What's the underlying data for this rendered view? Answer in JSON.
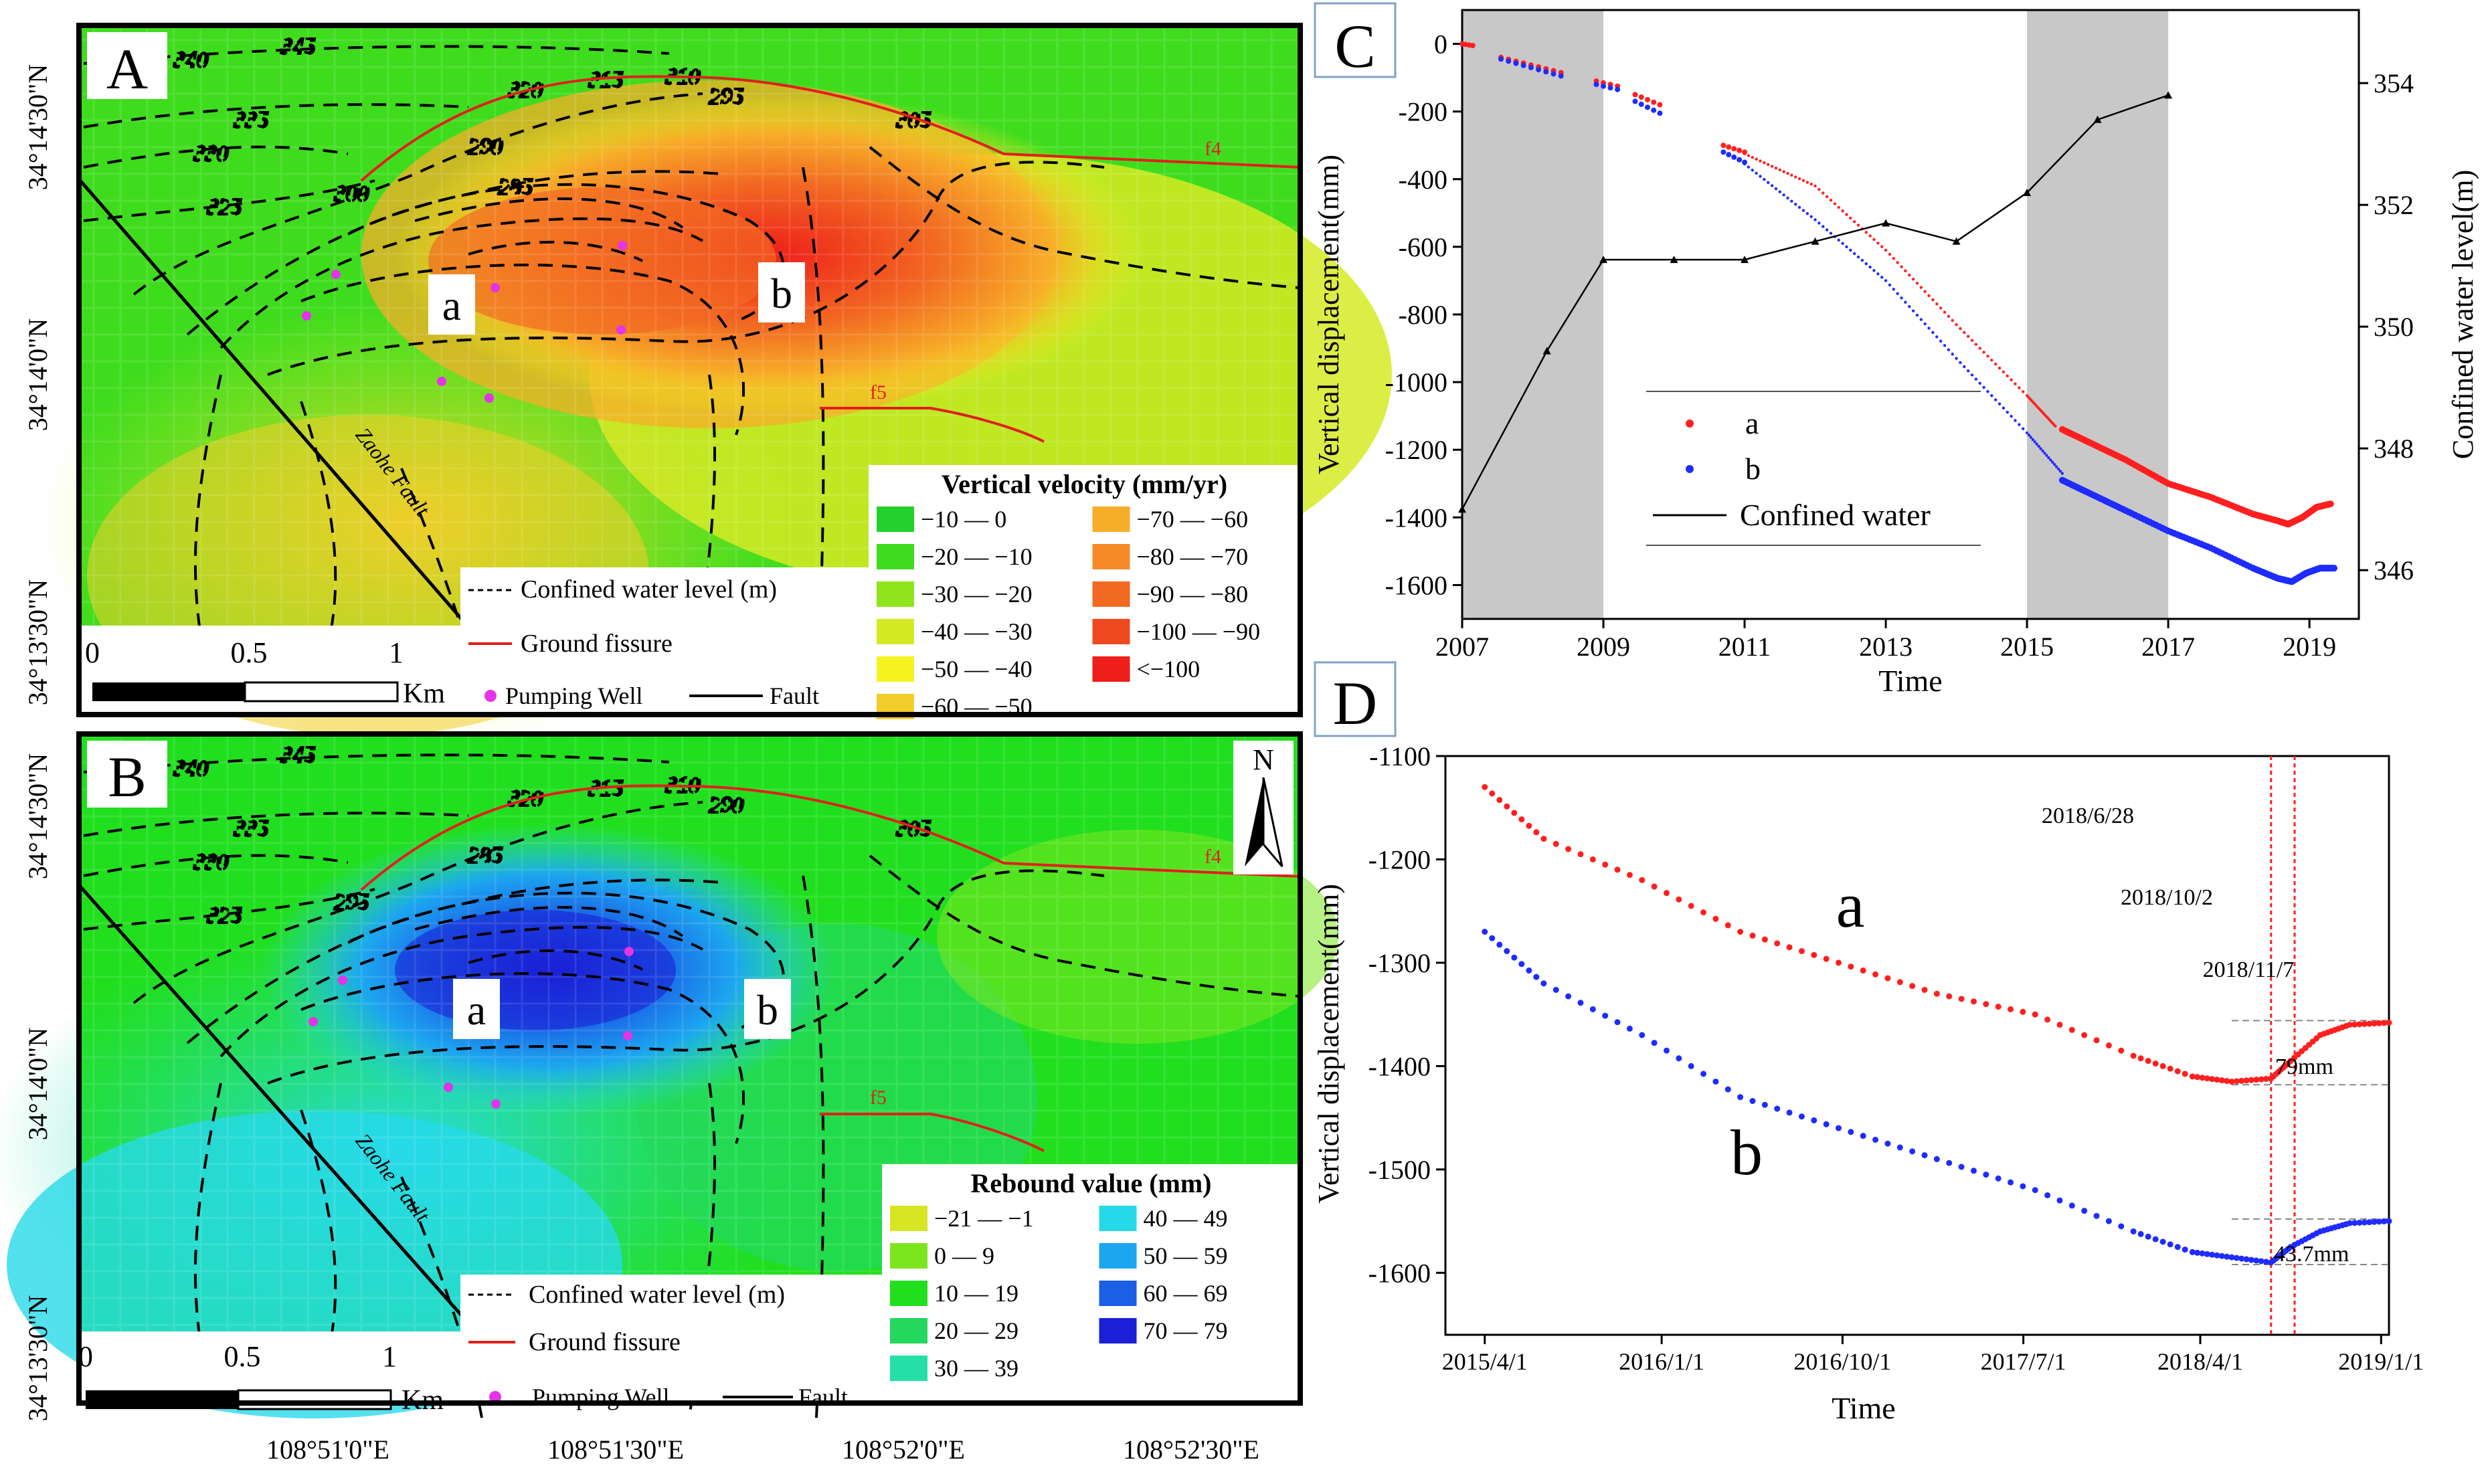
{
  "colors": {
    "red": "#ff1f1f",
    "blue": "#1f2bff",
    "black": "#000000",
    "fissure": "#e0201e",
    "gray_band": "#c8c8c8",
    "well": "#e533e8"
  },
  "chart_data": [
    {
      "id": "A",
      "type": "heatmap",
      "panel_label": "A",
      "y_ticks": [
        "34°14'30\"N",
        "34°14'0\"N",
        "34°13'30\"N"
      ],
      "scale_ticks": [
        "0",
        "0.5",
        "1"
      ],
      "scale_unit": "Km",
      "contours": [
        "345",
        "340",
        "335",
        "330",
        "325",
        "320",
        "315",
        "310",
        "305",
        "300",
        "295",
        "290",
        "285"
      ],
      "point_labels": [
        "a",
        "b"
      ],
      "fissure_labels": [
        "f4",
        "f5"
      ],
      "fault_label": "Zaohe Fault",
      "legend_overlay": [
        "Confined water level (m)",
        "Ground fissure",
        "Pumping Well",
        "Fault"
      ],
      "legend_title": "Vertical velocity (mm/yr)",
      "legend": [
        {
          "label": "−10 — 0",
          "color": "#22d12c"
        },
        {
          "label": "−20 — −10",
          "color": "#3fdc1e"
        },
        {
          "label": "−30 — −20",
          "color": "#8fe51d"
        },
        {
          "label": "−40 — −30",
          "color": "#d6ea24"
        },
        {
          "label": "−50 — −40",
          "color": "#f5f21f"
        },
        {
          "label": "−60 — −50",
          "color": "#f3cd2a"
        },
        {
          "label": "−70 — −60",
          "color": "#f7ad28"
        },
        {
          "label": "−80 — −70",
          "color": "#f58a26"
        },
        {
          "label": "−90 — −80",
          "color": "#f26a22"
        },
        {
          "label": "−100 — −90",
          "color": "#ef4a1f"
        },
        {
          "label": "<−100",
          "color": "#ee1f1a"
        }
      ]
    },
    {
      "id": "B",
      "type": "heatmap",
      "panel_label": "B",
      "north": "N",
      "x_ticks": [
        "108°51'0\"E",
        "108°51'30\"E",
        "108°52'0\"E",
        "108°52'30\"E"
      ],
      "y_ticks": [
        "34°14'30\"N",
        "34°14'0\"N",
        "34°13'30\"N"
      ],
      "scale_ticks": [
        "0",
        "0.5",
        "1"
      ],
      "scale_unit": "Km",
      "contours": [
        "345",
        "340",
        "335",
        "330",
        "325",
        "320",
        "315",
        "310",
        "305",
        "295",
        "290",
        "285"
      ],
      "point_labels": [
        "a",
        "b"
      ],
      "fissure_labels": [
        "f4",
        "f5"
      ],
      "fault_label": "Zaohe Fault",
      "legend_overlay": [
        "Confined water level (m)",
        "Ground fissure",
        "Pumping Well",
        "Fault"
      ],
      "legend_title": "Rebound value (mm)",
      "legend": [
        {
          "label": "−21 — −1",
          "color": "#d7e622"
        },
        {
          "label": "0 — 9",
          "color": "#7de51d"
        },
        {
          "label": "10 — 19",
          "color": "#21df1f"
        },
        {
          "label": "20 — 29",
          "color": "#23d85c"
        },
        {
          "label": "30 — 39",
          "color": "#25dfa9"
        },
        {
          "label": "40 — 49",
          "color": "#27d9e8"
        },
        {
          "label": "50 — 59",
          "color": "#1ca6ef"
        },
        {
          "label": "60 — 69",
          "color": "#1a5fe6"
        },
        {
          "label": "70 — 79",
          "color": "#1b1fd6"
        }
      ]
    },
    {
      "id": "C",
      "type": "scatter",
      "panel_label": "C",
      "xlabel": "Time",
      "ylabel": "Vertical displacement(mm)",
      "y2label": "Confined water level(m)",
      "xlim": [
        2007,
        2019.7
      ],
      "ylim": [
        -1700,
        100
      ],
      "y2lim": [
        345.2,
        355.2
      ],
      "x_ticks": [
        2007,
        2009,
        2011,
        2013,
        2015,
        2017,
        2019
      ],
      "y_ticks": [
        0,
        -200,
        -400,
        -600,
        -800,
        -1000,
        -1200,
        -1400,
        -1600
      ],
      "y2_ticks": [
        346,
        348,
        350,
        352,
        354
      ],
      "shaded_ranges": [
        [
          2007,
          2009
        ],
        [
          2015,
          2017
        ]
      ],
      "legend": [
        "a",
        "b",
        "Confined water"
      ],
      "series": [
        {
          "name": "a",
          "color": "#ff1f1f",
          "clusters": [
            [
              2007.0,
              2007.15,
              0,
              -5,
              4
            ],
            [
              2007.55,
              2008.4,
              -40,
              -85,
              9
            ],
            [
              2008.9,
              2009.2,
              -110,
              -125,
              4
            ],
            [
              2009.45,
              2009.8,
              -150,
              -180,
              5
            ],
            [
              2010.7,
              2011.0,
              -300,
              -320,
              5
            ]
          ],
          "trend": [
            [
              2011.0,
              -325
            ],
            [
              2012,
              -420
            ],
            [
              2013,
              -610
            ],
            [
              2014,
              -830
            ],
            [
              2015,
              -1040
            ],
            [
              2015.4,
              -1130
            ]
          ],
          "dense": [
            [
              2015.5,
              -1140
            ],
            [
              2015.9,
              -1180
            ],
            [
              2016.4,
              -1230
            ],
            [
              2017.0,
              -1300
            ],
            [
              2017.6,
              -1340
            ],
            [
              2018.2,
              -1390
            ],
            [
              2018.55,
              -1410
            ],
            [
              2018.7,
              -1420
            ],
            [
              2018.9,
              -1400
            ],
            [
              2019.1,
              -1370
            ],
            [
              2019.3,
              -1360
            ]
          ]
        },
        {
          "name": "b",
          "color": "#1f2bff",
          "clusters": [
            [
              2007.55,
              2008.4,
              -45,
              -95,
              9
            ],
            [
              2008.9,
              2009.2,
              -120,
              -135,
              4
            ],
            [
              2009.45,
              2009.8,
              -170,
              -205,
              5
            ],
            [
              2010.7,
              2011.0,
              -320,
              -350,
              5
            ]
          ],
          "trend": [
            [
              2011.0,
              -355
            ],
            [
              2012,
              -520
            ],
            [
              2013,
              -700
            ],
            [
              2014,
              -930
            ],
            [
              2015,
              -1150
            ],
            [
              2015.5,
              -1270
            ]
          ],
          "dense": [
            [
              2015.5,
              -1290
            ],
            [
              2015.9,
              -1330
            ],
            [
              2016.4,
              -1380
            ],
            [
              2017.0,
              -1440
            ],
            [
              2017.6,
              -1490
            ],
            [
              2018.2,
              -1550
            ],
            [
              2018.55,
              -1580
            ],
            [
              2018.75,
              -1590
            ],
            [
              2018.95,
              -1565
            ],
            [
              2019.15,
              -1550
            ],
            [
              2019.35,
              -1550
            ]
          ]
        },
        {
          "name": "Confined water",
          "color": "#000000",
          "x": [
            2007,
            2008.2,
            2009,
            2010,
            2011,
            2012,
            2013,
            2014,
            2015,
            2016,
            2017
          ],
          "y": [
            347.0,
            349.6,
            351.1,
            351.1,
            351.1,
            351.4,
            351.7,
            351.4,
            352.2,
            353.4,
            353.8
          ]
        }
      ]
    },
    {
      "id": "D",
      "type": "scatter",
      "panel_label": "D",
      "xlabel": "Time",
      "ylabel": "Vertical displacement(mm)",
      "x_ticks": [
        "2015/4/1",
        "2016/1/1",
        "2016/10/1",
        "2017/7/1",
        "2018/4/1",
        "2019/1/1"
      ],
      "y_ticks": [
        -1100,
        -1200,
        -1300,
        -1400,
        -1500,
        -1600
      ],
      "xlim": [
        0,
        48
      ],
      "ylim": [
        -1660,
        -1100
      ],
      "vlines": [
        {
          "label": "2018/10/2",
          "x": 42.0
        },
        {
          "label": "2018/11/7",
          "x": 43.2
        }
      ],
      "annotations": [
        "2018/6/28",
        "2018/10/2",
        "2018/11/7",
        "79mm",
        "43.7mm",
        "a",
        "b"
      ],
      "series": [
        {
          "name": "a",
          "color": "#ff1f1f",
          "x": [
            2,
            5,
            10,
            15,
            20,
            25,
            30,
            35,
            38,
            40,
            42,
            43,
            44.5,
            46,
            48
          ],
          "y": [
            -1130,
            -1180,
            -1220,
            -1270,
            -1300,
            -1330,
            -1350,
            -1390,
            -1410,
            -1415,
            -1412,
            -1395,
            -1370,
            -1360,
            -1358
          ]
        },
        {
          "name": "b",
          "color": "#1f2bff",
          "x": [
            2,
            5,
            10,
            15,
            20,
            25,
            30,
            35,
            38,
            40,
            42,
            43,
            44.5,
            46,
            48
          ],
          "y": [
            -1270,
            -1320,
            -1370,
            -1430,
            -1460,
            -1490,
            -1520,
            -1560,
            -1580,
            -1585,
            -1590,
            -1575,
            -1560,
            -1552,
            -1550
          ]
        }
      ]
    }
  ]
}
